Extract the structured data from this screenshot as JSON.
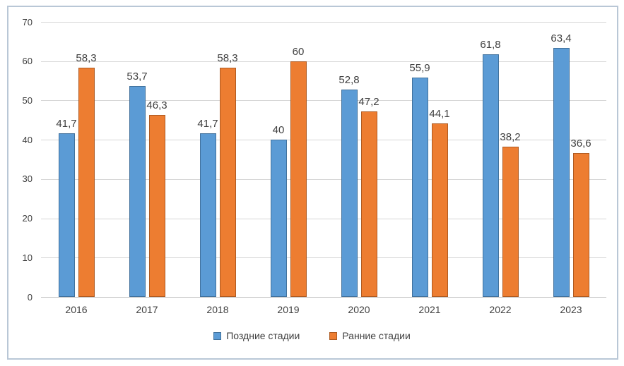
{
  "chart_data": {
    "type": "bar",
    "title": "",
    "categories": [
      "2016",
      "2017",
      "2018",
      "2019",
      "2020",
      "2021",
      "2022",
      "2023"
    ],
    "series": [
      {
        "name": "Поздние стадии",
        "color": "#5B9BD5",
        "border_color": "#41719C",
        "values": [
          41.7,
          53.7,
          41.7,
          40,
          52.8,
          55.9,
          61.8,
          63.4
        ],
        "labels": [
          "41,7",
          "53,7",
          "41,7",
          "40",
          "52,8",
          "55,9",
          "61,8",
          "63,4"
        ]
      },
      {
        "name": "Ранние стадии",
        "color": "#ED7D31",
        "border_color": "#AE5A21",
        "values": [
          58.3,
          46.3,
          58.3,
          60,
          47.2,
          44.1,
          38.2,
          36.6
        ],
        "labels": [
          "58,3",
          "46,3",
          "58,3",
          "60",
          "47,2",
          "44,1",
          "38,2",
          "36,6"
        ]
      }
    ],
    "y_axis": {
      "min": 0,
      "max": 70,
      "step": 10,
      "ticks": [
        "0",
        "10",
        "20",
        "30",
        "40",
        "50",
        "60",
        "70"
      ]
    },
    "grid": true,
    "legend_position": "bottom",
    "label_decimal_separator": ","
  },
  "style_colors": {
    "frame_border": "#b9c7d6",
    "gridline": "#d6d6d6",
    "axis_text": "#404040"
  }
}
